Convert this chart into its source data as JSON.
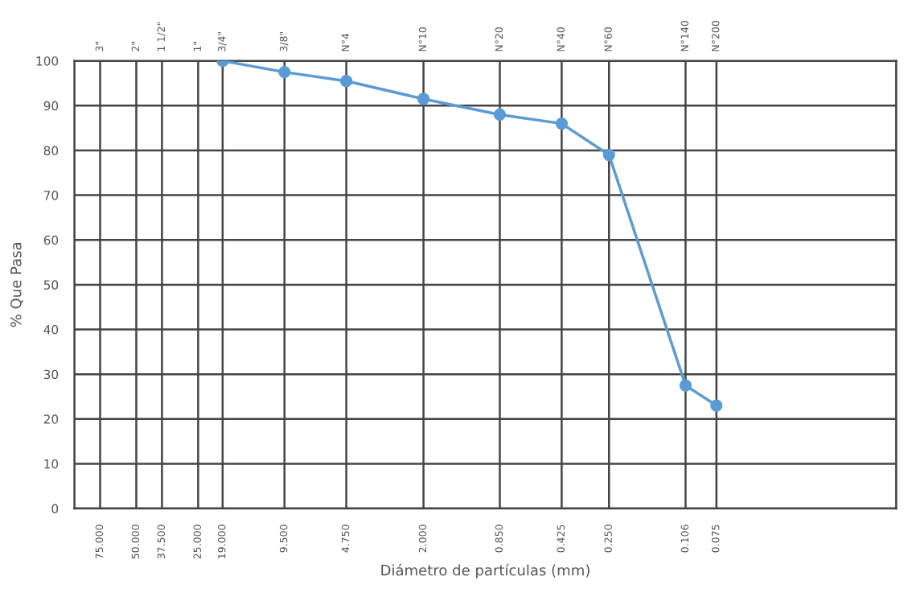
{
  "chart_data": {
    "type": "line",
    "xlabel": "Diámetro de partículas (mm)",
    "ylabel": "% Que Pasa",
    "log": "x",
    "x": [
      19.0,
      9.5,
      4.75,
      2.0,
      0.85,
      0.425,
      0.25,
      0.106,
      0.075
    ],
    "series": [
      {
        "color": "#5b9bd5",
        "values": [
          100,
          97.5,
          95.5,
          91.5,
          88,
          86,
          79,
          27.5,
          23
        ]
      }
    ],
    "marker": "circle",
    "line_style": "solid",
    "grid": true,
    "xlim": [
      100,
      0.01
    ],
    "ylim": [
      0,
      100
    ],
    "xticks": [
      {
        "value": 75,
        "label": "75.000"
      },
      {
        "value": 50,
        "label": "50.000"
      },
      {
        "value": 37.5,
        "label": "37.500"
      },
      {
        "value": 25,
        "label": "25.000"
      },
      {
        "value": 19,
        "label": "19.000"
      },
      {
        "value": 9.5,
        "label": "9.500"
      },
      {
        "value": 4.75,
        "label": "4.750"
      },
      {
        "value": 2,
        "label": "2.000"
      },
      {
        "value": 0.85,
        "label": "0.850"
      },
      {
        "value": 0.425,
        "label": "0.425"
      },
      {
        "value": 0.25,
        "label": "0.250"
      },
      {
        "value": 0.106,
        "label": "0.106"
      },
      {
        "value": 0.075,
        "label": "0.075"
      }
    ],
    "annotations": [
      "3\"",
      "2\"",
      "1 1/2\"",
      "1\"",
      "3/4\"",
      "3/8\"",
      "N°4",
      "N°10",
      "N°20",
      "N°40",
      "N°60",
      "N°140",
      "N°200"
    ],
    "yticks": [
      0,
      10,
      20,
      30,
      40,
      50,
      60,
      70,
      80,
      90,
      100
    ]
  }
}
